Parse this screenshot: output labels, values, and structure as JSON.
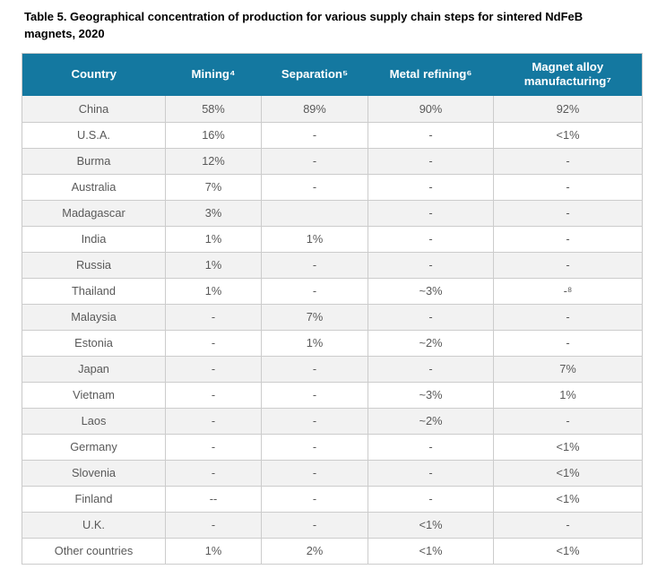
{
  "title": "Table 5. Geographical concentration of production for various supply chain steps for sintered NdFeB magnets, 2020",
  "table": {
    "columns": [
      "Country",
      "Mining⁴",
      "Separation⁵",
      "Metal refining⁶",
      "Magnet alloy manufacturing⁷"
    ],
    "rows": [
      {
        "country": "China",
        "values": [
          "58%",
          "89%",
          "90%",
          "92%"
        ]
      },
      {
        "country": "U.S.A.",
        "values": [
          "16%",
          "-",
          "-",
          "<1%"
        ]
      },
      {
        "country": "Burma",
        "values": [
          "12%",
          "-",
          "-",
          "-"
        ]
      },
      {
        "country": "Australia",
        "values": [
          "7%",
          "-",
          "-",
          "-"
        ]
      },
      {
        "country": "Madagascar",
        "values": [
          "3%",
          "",
          "-",
          "-"
        ]
      },
      {
        "country": "India",
        "values": [
          "1%",
          "1%",
          "-",
          "-"
        ]
      },
      {
        "country": "Russia",
        "values": [
          "1%",
          "-",
          "-",
          "-"
        ]
      },
      {
        "country": "Thailand",
        "values": [
          "1%",
          "-",
          "~3%",
          "-⁸"
        ]
      },
      {
        "country": "Malaysia",
        "values": [
          "-",
          "7%",
          "-",
          "-"
        ]
      },
      {
        "country": "Estonia",
        "values": [
          "-",
          "1%",
          "~2%",
          "-"
        ]
      },
      {
        "country": "Japan",
        "values": [
          "-",
          "-",
          "-",
          "7%"
        ]
      },
      {
        "country": "Vietnam",
        "values": [
          "-",
          "-",
          "~3%",
          "1%"
        ]
      },
      {
        "country": "Laos",
        "values": [
          "-",
          "-",
          "~2%",
          "-"
        ]
      },
      {
        "country": "Germany",
        "values": [
          "-",
          "-",
          "-",
          "<1%"
        ]
      },
      {
        "country": "Slovenia",
        "values": [
          "-",
          "-",
          "-",
          "<1%"
        ]
      },
      {
        "country": "Finland",
        "values": [
          "--",
          "-",
          "-",
          "<1%"
        ]
      },
      {
        "country": "U.K.",
        "values": [
          "-",
          "-",
          "<1%",
          "-"
        ]
      },
      {
        "country": "Other countries",
        "values": [
          "1%",
          "2%",
          "<1%",
          "<1%"
        ]
      }
    ],
    "colors": {
      "header_bg": "#1478a0",
      "header_text": "#ffffff",
      "row_stripe": "#f2f2f2",
      "cell_text": "#595959",
      "border": "#cccccc"
    }
  }
}
